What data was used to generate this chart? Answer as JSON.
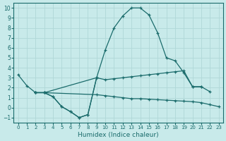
{
  "xlabel": "Humidex (Indice chaleur)",
  "xlim": [
    -0.5,
    23.5
  ],
  "ylim": [
    -1.5,
    10.5
  ],
  "xticks": [
    0,
    1,
    2,
    3,
    4,
    5,
    6,
    7,
    8,
    9,
    10,
    11,
    12,
    13,
    14,
    15,
    16,
    17,
    18,
    19,
    20,
    21,
    22,
    23
  ],
  "yticks": [
    -1,
    0,
    1,
    2,
    3,
    4,
    5,
    6,
    7,
    8,
    9,
    10
  ],
  "background_color": "#c8eaea",
  "grid_color": "#b0d8d8",
  "line_color": "#1a6b6b",
  "series1_x": [
    0,
    1,
    2,
    3,
    4,
    5,
    6,
    7,
    8,
    9,
    10,
    11,
    12,
    13,
    14,
    15,
    16,
    17,
    18,
    19,
    20,
    21,
    22
  ],
  "series1_y": [
    3.3,
    2.2,
    1.5,
    1.5,
    1.1,
    0.1,
    -0.4,
    -1.0,
    -0.7,
    3.0,
    5.8,
    8.0,
    9.2,
    10.0,
    10.0,
    9.3,
    7.5,
    5.0,
    4.7,
    3.5,
    2.1,
    2.1,
    1.6
  ],
  "series2_x": [
    2,
    3,
    9,
    10,
    11,
    12,
    13,
    14,
    15,
    16,
    17,
    18,
    19,
    20,
    21
  ],
  "series2_y": [
    1.5,
    1.5,
    3.0,
    2.8,
    2.9,
    3.0,
    3.1,
    3.2,
    3.3,
    3.4,
    3.5,
    3.6,
    3.7,
    2.1,
    2.1
  ],
  "series3_x": [
    2,
    3,
    9,
    10,
    11,
    12,
    13,
    14,
    15,
    16,
    17,
    18,
    19,
    20,
    21,
    22,
    23
  ],
  "series3_y": [
    1.5,
    1.5,
    1.3,
    1.2,
    1.1,
    1.0,
    0.9,
    0.9,
    0.85,
    0.8,
    0.75,
    0.7,
    0.65,
    0.6,
    0.5,
    0.3,
    0.1
  ],
  "series4_x": [
    2,
    3,
    4,
    5,
    6,
    7,
    8,
    9
  ],
  "series4_y": [
    1.5,
    1.5,
    1.1,
    0.1,
    -0.4,
    -1.0,
    -0.7,
    3.0
  ]
}
